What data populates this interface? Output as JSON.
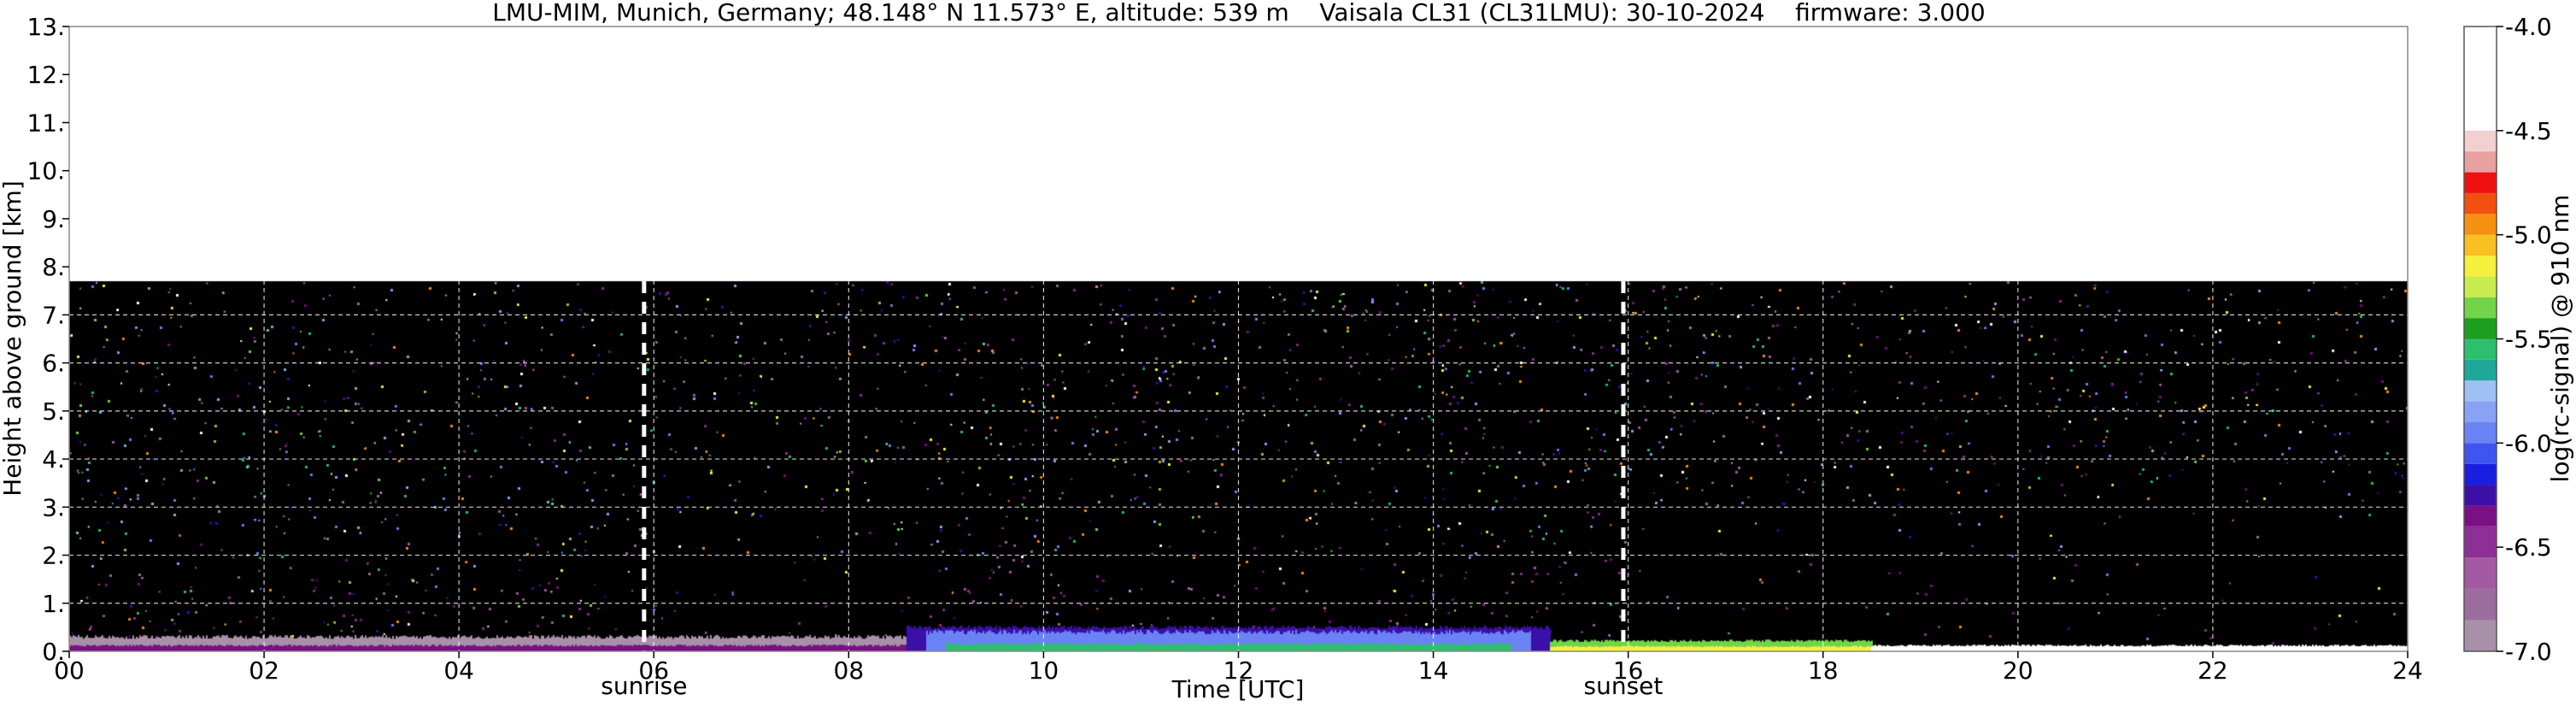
{
  "chart_data": {
    "type": "heatmap",
    "title": "LMU-MIM, Munich, Germany; 48.148° N 11.573° E, altitude: 539 m    Vaisala CL31 (CL31LMU): 30-10-2024    firmware: 3.000",
    "xlabel": "Time [UTC]",
    "ylabel": "Height above ground [km]",
    "xlim": [
      0,
      24
    ],
    "ylim": [
      0,
      13
    ],
    "x_ticks": [
      0,
      2,
      4,
      6,
      8,
      10,
      12,
      14,
      16,
      18,
      20,
      22,
      24
    ],
    "x_tick_labels": [
      "00",
      "02",
      "04",
      "06",
      "08",
      "10",
      "12",
      "14",
      "16",
      "18",
      "20",
      "22",
      "24"
    ],
    "y_ticks": [
      0,
      1,
      2,
      3,
      4,
      5,
      6,
      7,
      8,
      9,
      10,
      11,
      12,
      13
    ],
    "y_tick_labels": [
      "0.",
      "1.",
      "2.",
      "3.",
      "4.",
      "5.",
      "6.",
      "7.",
      "8.",
      "9.",
      "10.",
      "11.",
      "12.",
      "13."
    ],
    "grid": true,
    "data_top_km": 7.7,
    "markers": [
      {
        "label": "sunrise",
        "x": 5.9
      },
      {
        "label": "sunset",
        "x": 15.95
      }
    ],
    "colorbar": {
      "label": "log(rc-signal) @ 910 nm",
      "range": [
        -7.0,
        -4.0
      ],
      "ticks": [
        -7.0,
        -6.5,
        -6.0,
        -5.5,
        -5.0,
        -4.5,
        -4.0
      ],
      "tick_labels": [
        "-7.0",
        "-6.5",
        "-6.0",
        "-5.5",
        "-5.0",
        "-4.5",
        "-4.0"
      ],
      "levels": [
        {
          "v": -7.0,
          "color": "#a790a8"
        },
        {
          "v": -6.85,
          "color": "#9b6d9f"
        },
        {
          "v": -6.7,
          "color": "#a35aa3"
        },
        {
          "v": -6.55,
          "color": "#8d2f94"
        },
        {
          "v": -6.4,
          "color": "#7a0f86"
        },
        {
          "v": -6.3,
          "color": "#3b10a8"
        },
        {
          "v": -6.2,
          "color": "#1a1ee0"
        },
        {
          "v": -6.1,
          "color": "#3f55f0"
        },
        {
          "v": -6.0,
          "color": "#6b82f5"
        },
        {
          "v": -5.9,
          "color": "#8aa2f6"
        },
        {
          "v": -5.8,
          "color": "#9ec0f4"
        },
        {
          "v": -5.7,
          "color": "#1fa89a"
        },
        {
          "v": -5.6,
          "color": "#2dbf6e"
        },
        {
          "v": -5.5,
          "color": "#1e9e1e"
        },
        {
          "v": -5.4,
          "color": "#72d448"
        },
        {
          "v": -5.3,
          "color": "#c8ec50"
        },
        {
          "v": -5.2,
          "color": "#f5f03c"
        },
        {
          "v": -5.1,
          "color": "#f8c020"
        },
        {
          "v": -5.0,
          "color": "#f69010"
        },
        {
          "v": -4.9,
          "color": "#f25010"
        },
        {
          "v": -4.8,
          "color": "#ee1010"
        },
        {
          "v": -4.7,
          "color": "#e8a0a0"
        },
        {
          "v": -4.6,
          "color": "#f2d0d0"
        },
        {
          "v": -4.5,
          "color": "#ffffff"
        }
      ]
    }
  }
}
